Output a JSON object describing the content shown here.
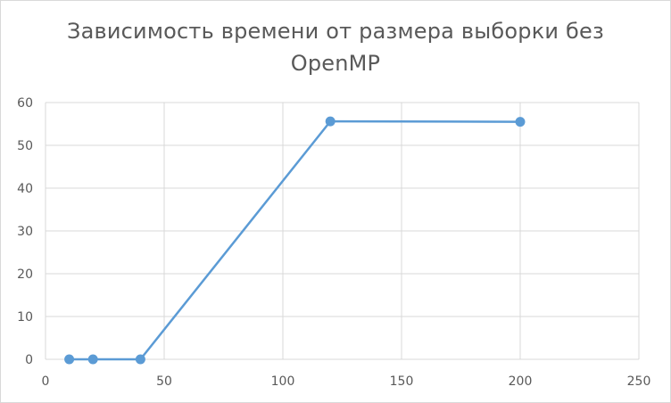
{
  "chart_data": {
    "type": "scatter",
    "title": "Зависимость времени от размера выборки без OpenMP",
    "xlabel": "",
    "ylabel": "",
    "xlim": [
      0,
      250
    ],
    "ylim": [
      0,
      60
    ],
    "x_ticks": [
      0,
      50,
      100,
      150,
      200,
      250
    ],
    "y_ticks": [
      0,
      10,
      20,
      30,
      40,
      50,
      60
    ],
    "grid": true,
    "legend": "none",
    "line_color": "#5b9bd5",
    "series": [
      {
        "x": [
          10,
          20,
          40,
          120,
          200
        ],
        "y": [
          0,
          0,
          0,
          55.6,
          55.5
        ]
      }
    ]
  }
}
